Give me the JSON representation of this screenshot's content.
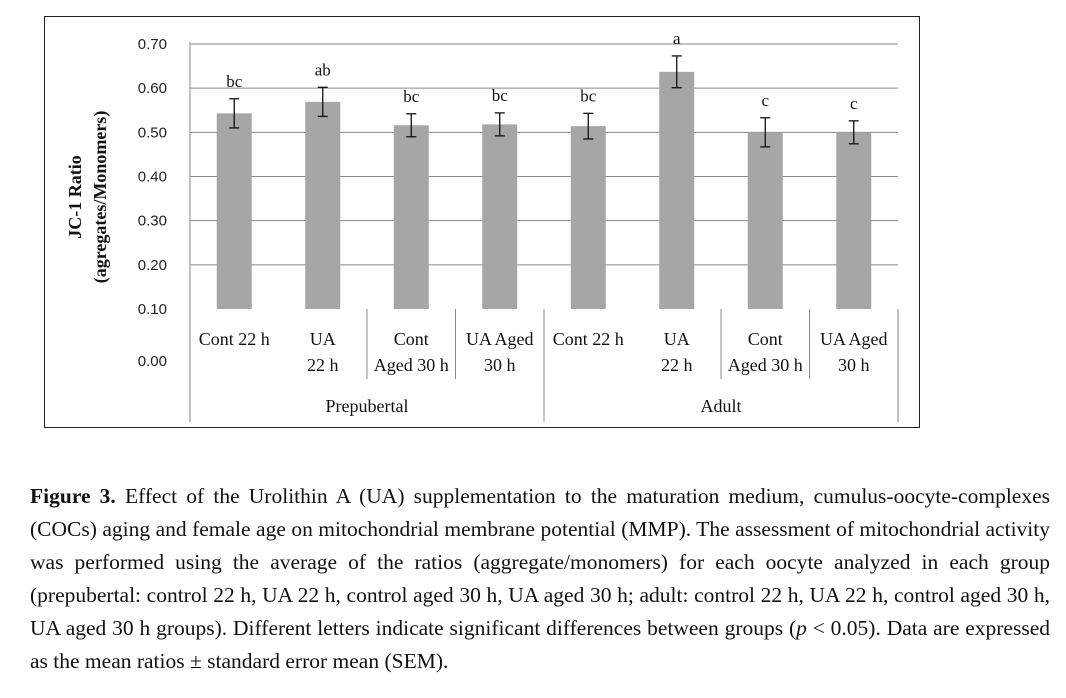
{
  "chart_data": {
    "type": "bar",
    "ylabel_line1": "JC-1 Ratio",
    "ylabel_line2": "(agregates/Monomers)",
    "ylim": [
      0.1,
      0.7
    ],
    "ytick_values": [
      0.1,
      0.2,
      0.3,
      0.4,
      0.5,
      0.6,
      0.7
    ],
    "ytick_labels": [
      "0.10",
      "0.20",
      "0.30",
      "0.40",
      "0.50",
      "0.60",
      "0.70"
    ],
    "zero_label": "0.00",
    "grid": true,
    "bar_color": "#a6a6a6",
    "groups": [
      "Prepubertal",
      "Adult"
    ],
    "categories": [
      {
        "line1": "Cont 22 h",
        "line2": ""
      },
      {
        "line1": "UA",
        "line2": "22 h"
      },
      {
        "line1": "Cont",
        "line2": "Aged 30 h"
      },
      {
        "line1": "UA Aged",
        "line2": "30 h"
      },
      {
        "line1": "Cont 22 h",
        "line2": ""
      },
      {
        "line1": "UA",
        "line2": "22 h"
      },
      {
        "line1": "Cont",
        "line2": "Aged 30 h"
      },
      {
        "line1": "UA Aged",
        "line2": "30 h"
      }
    ],
    "values": [
      0.543,
      0.569,
      0.516,
      0.518,
      0.514,
      0.637,
      0.5,
      0.5
    ],
    "errors": [
      0.033,
      0.033,
      0.026,
      0.026,
      0.029,
      0.036,
      0.033,
      0.026
    ],
    "letters": [
      "bc",
      "ab",
      "bc",
      "bc",
      "bc",
      "a",
      "c",
      "c"
    ]
  },
  "caption": {
    "figure_label": "Figure 3.",
    "text_1": " Effect of the Urolithin A (UA) supplementation to the maturation medium, cumulus-oocyte-complexes (COCs) aging and female age on mitochondrial membrane potential (MMP). The assessment of mitochondrial activity was performed using the average of the ratios (aggregate/monomers) for each oocyte analyzed in each group (prepubertal: control 22 h, UA 22 h, control aged 30 h, UA aged 30 h; adult: control 22 h, UA 22 h, control aged 30 h, UA aged 30 h groups). Different letters indicate significant differences between groups (",
    "p_symbol": "p",
    "text_2": " < 0.05). Data are expressed as the mean ratios ± standard error mean (SEM)."
  }
}
